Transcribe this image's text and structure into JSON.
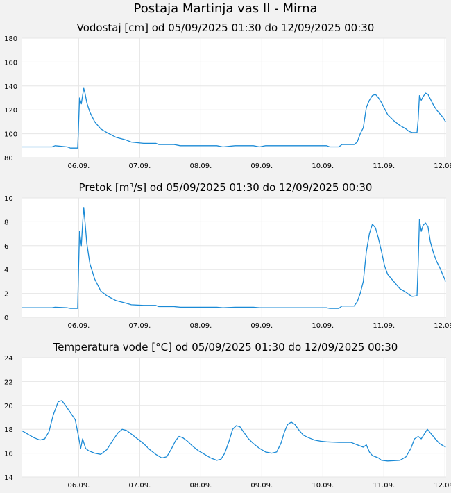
{
  "page_title": "Postaja Martinja vas II - Mirna",
  "colors": {
    "series": "#1a8ad6",
    "grid": "#e6e6e6",
    "plot_bg": "#ffffff",
    "page_bg": "#f2f2f2"
  },
  "chart_data": [
    {
      "type": "line",
      "title": "Vodostaj [cm] od 05/09/2025 01:30 do 12/09/2025 00:30",
      "xlabel": "",
      "ylabel": "",
      "ylim": [
        80,
        180
      ],
      "yticks": [
        "80",
        "100",
        "120",
        "140",
        "160",
        "180"
      ],
      "xlim": [
        0,
        6.958
      ],
      "xticks": [
        {
          "x": 0.9375,
          "label": "06.09."
        },
        {
          "x": 1.9375,
          "label": "07.09."
        },
        {
          "x": 2.9375,
          "label": "08.09."
        },
        {
          "x": 3.9375,
          "label": "09.09."
        },
        {
          "x": 4.9375,
          "label": "10.09."
        },
        {
          "x": 5.9375,
          "label": "11.09."
        },
        {
          "x": 6.9375,
          "label": "12.09."
        }
      ],
      "grid": true,
      "x_unit": "days since 05/09/2025 01:30",
      "series": [
        {
          "values": [
            [
              0,
              89
            ],
            [
              0.5,
              89
            ],
            [
              0.55,
              90
            ],
            [
              0.75,
              89
            ],
            [
              0.8,
              88
            ],
            [
              0.92,
              88
            ],
            [
              0.93,
              100
            ],
            [
              0.95,
              130
            ],
            [
              0.98,
              125
            ],
            [
              1.0,
              132
            ],
            [
              1.02,
              138
            ],
            [
              1.04,
              134
            ],
            [
              1.07,
              126
            ],
            [
              1.12,
              118
            ],
            [
              1.2,
              110
            ],
            [
              1.3,
              104
            ],
            [
              1.4,
              101
            ],
            [
              1.55,
              97
            ],
            [
              1.7,
              95
            ],
            [
              1.8,
              93
            ],
            [
              2.0,
              92
            ],
            [
              2.2,
              92
            ],
            [
              2.25,
              91
            ],
            [
              2.5,
              91
            ],
            [
              2.6,
              90
            ],
            [
              3.0,
              90
            ],
            [
              3.2,
              90
            ],
            [
              3.3,
              89
            ],
            [
              3.5,
              90
            ],
            [
              3.8,
              90
            ],
            [
              3.9,
              89
            ],
            [
              4.0,
              90
            ],
            [
              4.4,
              90
            ],
            [
              4.8,
              90
            ],
            [
              5.0,
              90
            ],
            [
              5.05,
              89
            ],
            [
              5.2,
              89
            ],
            [
              5.25,
              91
            ],
            [
              5.45,
              91
            ],
            [
              5.5,
              93
            ],
            [
              5.55,
              100
            ],
            [
              5.6,
              105
            ],
            [
              5.65,
              122
            ],
            [
              5.7,
              128
            ],
            [
              5.75,
              132
            ],
            [
              5.8,
              133
            ],
            [
              5.85,
              130
            ],
            [
              5.9,
              126
            ],
            [
              5.95,
              121
            ],
            [
              6.0,
              116
            ],
            [
              6.1,
              111
            ],
            [
              6.2,
              107
            ],
            [
              6.3,
              104
            ],
            [
              6.35,
              102
            ],
            [
              6.4,
              101
            ],
            [
              6.48,
              101
            ],
            [
              6.5,
              112
            ],
            [
              6.52,
              132
            ],
            [
              6.55,
              128
            ],
            [
              6.58,
              131
            ],
            [
              6.62,
              134
            ],
            [
              6.66,
              133
            ],
            [
              6.7,
              129
            ],
            [
              6.75,
              124
            ],
            [
              6.8,
              120
            ],
            [
              6.85,
              117
            ],
            [
              6.9,
              114
            ],
            [
              6.95,
              110
            ]
          ]
        }
      ]
    },
    {
      "type": "line",
      "title": "Pretok [m³/s] od 05/09/2025 01:30 do 12/09/2025 00:30",
      "xlabel": "",
      "ylabel": "",
      "ylim": [
        0,
        10
      ],
      "yticks": [
        "0",
        "2",
        "4",
        "6",
        "8",
        "10"
      ],
      "xlim": [
        0,
        6.958
      ],
      "xticks": [
        {
          "x": 0.9375,
          "label": "06.09."
        },
        {
          "x": 1.9375,
          "label": "07.09."
        },
        {
          "x": 2.9375,
          "label": "08.09."
        },
        {
          "x": 3.9375,
          "label": "09.09."
        },
        {
          "x": 4.9375,
          "label": "10.09."
        },
        {
          "x": 5.9375,
          "label": "11.09."
        },
        {
          "x": 6.9375,
          "label": "12.09."
        }
      ],
      "grid": true,
      "x_unit": "days since 05/09/2025 01:30",
      "series": [
        {
          "values": [
            [
              0,
              0.8
            ],
            [
              0.5,
              0.8
            ],
            [
              0.55,
              0.85
            ],
            [
              0.75,
              0.8
            ],
            [
              0.8,
              0.75
            ],
            [
              0.92,
              0.75
            ],
            [
              0.93,
              3
            ],
            [
              0.95,
              7.2
            ],
            [
              0.98,
              6.0
            ],
            [
              1.0,
              7.8
            ],
            [
              1.02,
              9.2
            ],
            [
              1.04,
              8.0
            ],
            [
              1.07,
              6.2
            ],
            [
              1.12,
              4.5
            ],
            [
              1.2,
              3.2
            ],
            [
              1.3,
              2.2
            ],
            [
              1.4,
              1.8
            ],
            [
              1.55,
              1.4
            ],
            [
              1.7,
              1.2
            ],
            [
              1.8,
              1.05
            ],
            [
              2.0,
              1.0
            ],
            [
              2.2,
              1.0
            ],
            [
              2.25,
              0.9
            ],
            [
              2.5,
              0.9
            ],
            [
              2.6,
              0.85
            ],
            [
              3.2,
              0.85
            ],
            [
              3.3,
              0.8
            ],
            [
              3.5,
              0.85
            ],
            [
              3.8,
              0.85
            ],
            [
              3.9,
              0.8
            ],
            [
              4.4,
              0.8
            ],
            [
              5.0,
              0.8
            ],
            [
              5.05,
              0.75
            ],
            [
              5.2,
              0.75
            ],
            [
              5.25,
              0.95
            ],
            [
              5.45,
              0.95
            ],
            [
              5.5,
              1.3
            ],
            [
              5.55,
              2.0
            ],
            [
              5.6,
              3.0
            ],
            [
              5.65,
              5.5
            ],
            [
              5.7,
              7.0
            ],
            [
              5.75,
              7.8
            ],
            [
              5.8,
              7.5
            ],
            [
              5.85,
              6.6
            ],
            [
              5.9,
              5.5
            ],
            [
              5.95,
              4.3
            ],
            [
              6.0,
              3.6
            ],
            [
              6.1,
              3.0
            ],
            [
              6.2,
              2.4
            ],
            [
              6.3,
              2.1
            ],
            [
              6.35,
              1.9
            ],
            [
              6.4,
              1.75
            ],
            [
              6.48,
              1.8
            ],
            [
              6.5,
              4.5
            ],
            [
              6.52,
              8.2
            ],
            [
              6.55,
              7.2
            ],
            [
              6.58,
              7.7
            ],
            [
              6.62,
              7.9
            ],
            [
              6.66,
              7.6
            ],
            [
              6.7,
              6.3
            ],
            [
              6.75,
              5.4
            ],
            [
              6.8,
              4.7
            ],
            [
              6.85,
              4.2
            ],
            [
              6.9,
              3.6
            ],
            [
              6.95,
              3.0
            ]
          ]
        }
      ]
    },
    {
      "type": "line",
      "title": "Temperatura vode [°C] od 05/09/2025 01:30 do 12/09/2025 00:30",
      "xlabel": "",
      "ylabel": "",
      "ylim": [
        14,
        24
      ],
      "yticks": [
        "14",
        "16",
        "18",
        "20",
        "22",
        "24"
      ],
      "xlim": [
        0,
        6.958
      ],
      "xticks": [
        {
          "x": 0.9375,
          "label": "06.09."
        },
        {
          "x": 1.9375,
          "label": "07.09."
        },
        {
          "x": 2.9375,
          "label": "08.09."
        },
        {
          "x": 3.9375,
          "label": "09.09."
        },
        {
          "x": 4.9375,
          "label": "10.09."
        },
        {
          "x": 5.9375,
          "label": "11.09."
        },
        {
          "x": 6.9375,
          "label": "12.09."
        }
      ],
      "grid": true,
      "x_unit": "days since 05/09/2025 01:30",
      "series": [
        {
          "values": [
            [
              0,
              17.9
            ],
            [
              0.1,
              17.6
            ],
            [
              0.2,
              17.3
            ],
            [
              0.3,
              17.1
            ],
            [
              0.38,
              17.2
            ],
            [
              0.45,
              17.8
            ],
            [
              0.52,
              19.2
            ],
            [
              0.6,
              20.3
            ],
            [
              0.66,
              20.4
            ],
            [
              0.72,
              20.0
            ],
            [
              0.8,
              19.4
            ],
            [
              0.88,
              18.8
            ],
            [
              0.93,
              17.5
            ],
            [
              0.97,
              16.4
            ],
            [
              1.0,
              17.2
            ],
            [
              1.05,
              16.4
            ],
            [
              1.1,
              16.2
            ],
            [
              1.2,
              16.0
            ],
            [
              1.3,
              15.9
            ],
            [
              1.4,
              16.3
            ],
            [
              1.5,
              17.1
            ],
            [
              1.58,
              17.7
            ],
            [
              1.65,
              18.0
            ],
            [
              1.72,
              17.9
            ],
            [
              1.8,
              17.6
            ],
            [
              1.9,
              17.2
            ],
            [
              2.0,
              16.8
            ],
            [
              2.1,
              16.3
            ],
            [
              2.2,
              15.9
            ],
            [
              2.3,
              15.6
            ],
            [
              2.38,
              15.7
            ],
            [
              2.45,
              16.3
            ],
            [
              2.52,
              17.0
            ],
            [
              2.58,
              17.4
            ],
            [
              2.64,
              17.3
            ],
            [
              2.72,
              17.0
            ],
            [
              2.8,
              16.6
            ],
            [
              2.9,
              16.2
            ],
            [
              3.0,
              15.9
            ],
            [
              3.1,
              15.6
            ],
            [
              3.2,
              15.4
            ],
            [
              3.27,
              15.5
            ],
            [
              3.33,
              16.0
            ],
            [
              3.4,
              17.0
            ],
            [
              3.46,
              18.0
            ],
            [
              3.52,
              18.3
            ],
            [
              3.58,
              18.2
            ],
            [
              3.65,
              17.7
            ],
            [
              3.72,
              17.2
            ],
            [
              3.8,
              16.8
            ],
            [
              3.9,
              16.4
            ],
            [
              4.0,
              16.1
            ],
            [
              4.1,
              16.0
            ],
            [
              4.18,
              16.1
            ],
            [
              4.25,
              16.8
            ],
            [
              4.31,
              17.8
            ],
            [
              4.36,
              18.4
            ],
            [
              4.42,
              18.6
            ],
            [
              4.48,
              18.4
            ],
            [
              4.55,
              17.9
            ],
            [
              4.62,
              17.5
            ],
            [
              4.7,
              17.3
            ],
            [
              4.8,
              17.1
            ],
            [
              4.9,
              17.0
            ],
            [
              5.0,
              16.95
            ],
            [
              5.2,
              16.9
            ],
            [
              5.4,
              16.9
            ],
            [
              5.5,
              16.7
            ],
            [
              5.6,
              16.5
            ],
            [
              5.65,
              16.7
            ],
            [
              5.7,
              16.1
            ],
            [
              5.75,
              15.8
            ],
            [
              5.85,
              15.6
            ],
            [
              5.9,
              15.4
            ],
            [
              6.0,
              15.35
            ],
            [
              6.2,
              15.4
            ],
            [
              6.3,
              15.7
            ],
            [
              6.38,
              16.4
            ],
            [
              6.44,
              17.2
            ],
            [
              6.5,
              17.4
            ],
            [
              6.55,
              17.2
            ],
            [
              6.6,
              17.6
            ],
            [
              6.65,
              18.0
            ],
            [
              6.7,
              17.7
            ],
            [
              6.78,
              17.2
            ],
            [
              6.85,
              16.8
            ],
            [
              6.95,
              16.5
            ]
          ]
        }
      ]
    }
  ]
}
